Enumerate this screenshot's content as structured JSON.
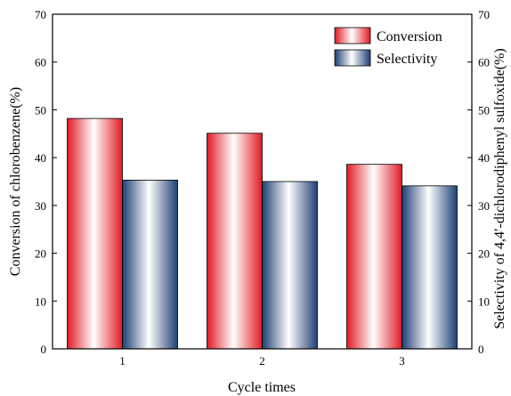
{
  "chart_data": {
    "type": "bar",
    "categories": [
      "1",
      "2",
      "3"
    ],
    "series": [
      {
        "name": "Conversion",
        "values": [
          48.2,
          45.1,
          38.6
        ],
        "color": "#e8303a",
        "axis": "left"
      },
      {
        "name": "Selectivity",
        "values": [
          35.3,
          35.0,
          34.1
        ],
        "color": "#3f5f8f",
        "axis": "right"
      }
    ],
    "xlabel": "Cycle times",
    "ylabel": "Conversion of chlorobenzene(%)",
    "ylabel_right": "Selectivity of 4,4′-dichlorodiphenyl sulfoxide(%)",
    "ylim": [
      0,
      70
    ],
    "ylim_right": [
      0,
      70
    ],
    "yticks": [
      "0",
      "10",
      "20",
      "30",
      "40",
      "50",
      "60",
      "70"
    ],
    "grid": false,
    "legend_position": "top-right"
  }
}
